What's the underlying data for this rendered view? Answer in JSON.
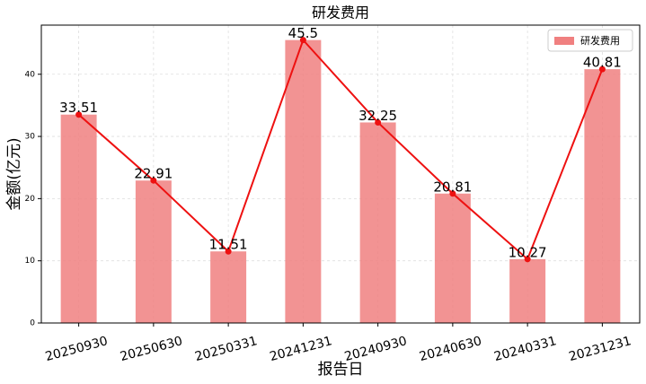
{
  "chart_data": {
    "type": "bar",
    "title": "研发费用",
    "x_label": "报告日",
    "y_label": "金额(亿元)",
    "categories": [
      "20250930",
      "20250630",
      "20250331",
      "20241231",
      "20240930",
      "20240630",
      "20240331",
      "20231231"
    ],
    "series": [
      {
        "name": "研发费用",
        "color": "#f08080",
        "values": [
          33.51,
          22.91,
          11.51,
          45.5,
          32.25,
          20.81,
          10.27,
          40.81
        ]
      }
    ],
    "line_color": "#ee1111",
    "ylim": [
      0,
      47.9
    ],
    "yticks": [
      0,
      10,
      20,
      30,
      40
    ],
    "grid": true,
    "legend": "upper right"
  }
}
